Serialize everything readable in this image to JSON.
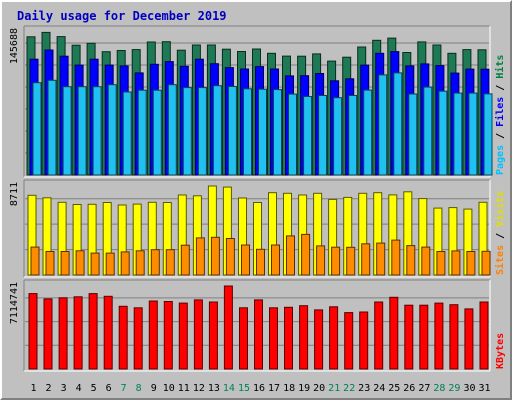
{
  "chart_data": {
    "type": "bar",
    "title": "Daily usage for December 2019",
    "categories": [
      "1",
      "2",
      "3",
      "4",
      "5",
      "6",
      "7",
      "8",
      "9",
      "10",
      "11",
      "12",
      "13",
      "14",
      "15",
      "16",
      "17",
      "18",
      "19",
      "20",
      "21",
      "22",
      "23",
      "24",
      "25",
      "26",
      "27",
      "28",
      "29",
      "30",
      "31"
    ],
    "weekend_days": [
      "7",
      "8",
      "14",
      "15",
      "21",
      "22",
      "28",
      "29"
    ],
    "panels": [
      {
        "name": "pages-files-hits",
        "max_label": "145688",
        "ymax": 145688,
        "legend": [
          {
            "label": "Pages",
            "color": "#00c0ff"
          },
          {
            "label": "/",
            "color": "#000000"
          },
          {
            "label": "Files",
            "color": "#0000ff"
          },
          {
            "label": "/",
            "color": "#000000"
          },
          {
            "label": "Hits",
            "color": "#008040"
          }
        ],
        "series": [
          {
            "name": "Hits",
            "color": "#1e7a55",
            "values": [
              140800,
              145300,
              141000,
              132200,
              134200,
              125600,
              126800,
              127800,
              135500,
              135800,
              127100,
              132400,
              132400,
              128200,
              125800,
              128400,
              124000,
              121100,
              121000,
              123400,
              116000,
              120000,
              130400,
              137200,
              139500,
              124800,
              135600,
              132400,
              124000,
              127800,
              127600
            ]
          },
          {
            "name": "Files",
            "color": "#0000ff",
            "values": [
              118000,
              127400,
              121000,
              112000,
              118000,
              112000,
              111200,
              104000,
              112800,
              115500,
              110700,
              118000,
              113400,
              109400,
              108000,
              110400,
              108000,
              101000,
              101200,
              103400,
              96000,
              98000,
              112000,
              124000,
              125700,
              111200,
              113200,
              111500,
              103800,
              107900,
              107800
            ]
          },
          {
            "name": "Pages",
            "color": "#20c0f0",
            "values": [
              94000,
              96500,
              90000,
              90000,
              90000,
              92000,
              84600,
              86400,
              86400,
              92000,
              89000,
              89000,
              91000,
              90200,
              87800,
              87400,
              87000,
              82400,
              80000,
              81000,
              78800,
              81000,
              86500,
              102000,
              104000,
              82500,
              89600,
              85400,
              83400,
              83400,
              82600
            ]
          }
        ]
      },
      {
        "name": "visits-sites",
        "max_label": "8711",
        "ymax": 8711,
        "legend": [
          {
            "label": "Sites",
            "color": "#ff8000"
          },
          {
            "label": "/",
            "color": "#000000"
          },
          {
            "label": "Visits",
            "color": "#e0e000"
          }
        ],
        "series": [
          {
            "name": "Visits",
            "color": "#ffff00",
            "values": [
              7800,
              7560,
              7120,
              6900,
              6920,
              7100,
              6850,
              6940,
              7120,
              7100,
              7830,
              7750,
              8711,
              8600,
              7540,
              7100,
              8060,
              8000,
              7830,
              8000,
              7400,
              7600,
              8000,
              8060,
              7840,
              8140,
              7480,
              6550,
              6600,
              6450,
              7120
            ]
          },
          {
            "name": "Sites",
            "color": "#ff8c00",
            "values": [
              2730,
              2300,
              2300,
              2370,
              2140,
              2140,
              2260,
              2370,
              2480,
              2480,
              2920,
              3630,
              3690,
              3570,
              2940,
              2520,
              2940,
              3830,
              3970,
              2850,
              2720,
              2710,
              3050,
              3120,
              3420,
              2880,
              2730,
              2300,
              2360,
              2300,
              2320
            ]
          }
        ]
      },
      {
        "name": "kbytes",
        "max_label": "7114741",
        "ymax": 7114741,
        "legend": [
          {
            "label": "KBytes",
            "color": "#ff0000"
          }
        ],
        "series": [
          {
            "name": "KBytes",
            "color": "#ff0000",
            "values": [
              6460000,
              6009000,
              6099000,
              6189000,
              6460000,
              6234000,
              5378000,
              5243000,
              5829000,
              5784000,
              5649000,
              5919000,
              5739000,
              7114741,
              5243000,
              5919000,
              5243000,
              5288000,
              5423000,
              5063000,
              5333000,
              4837000,
              4882000,
              5739000,
              6144000,
              5469000,
              5469000,
              5649000,
              5514000,
              5153000,
              5739000
            ]
          }
        ]
      }
    ]
  }
}
